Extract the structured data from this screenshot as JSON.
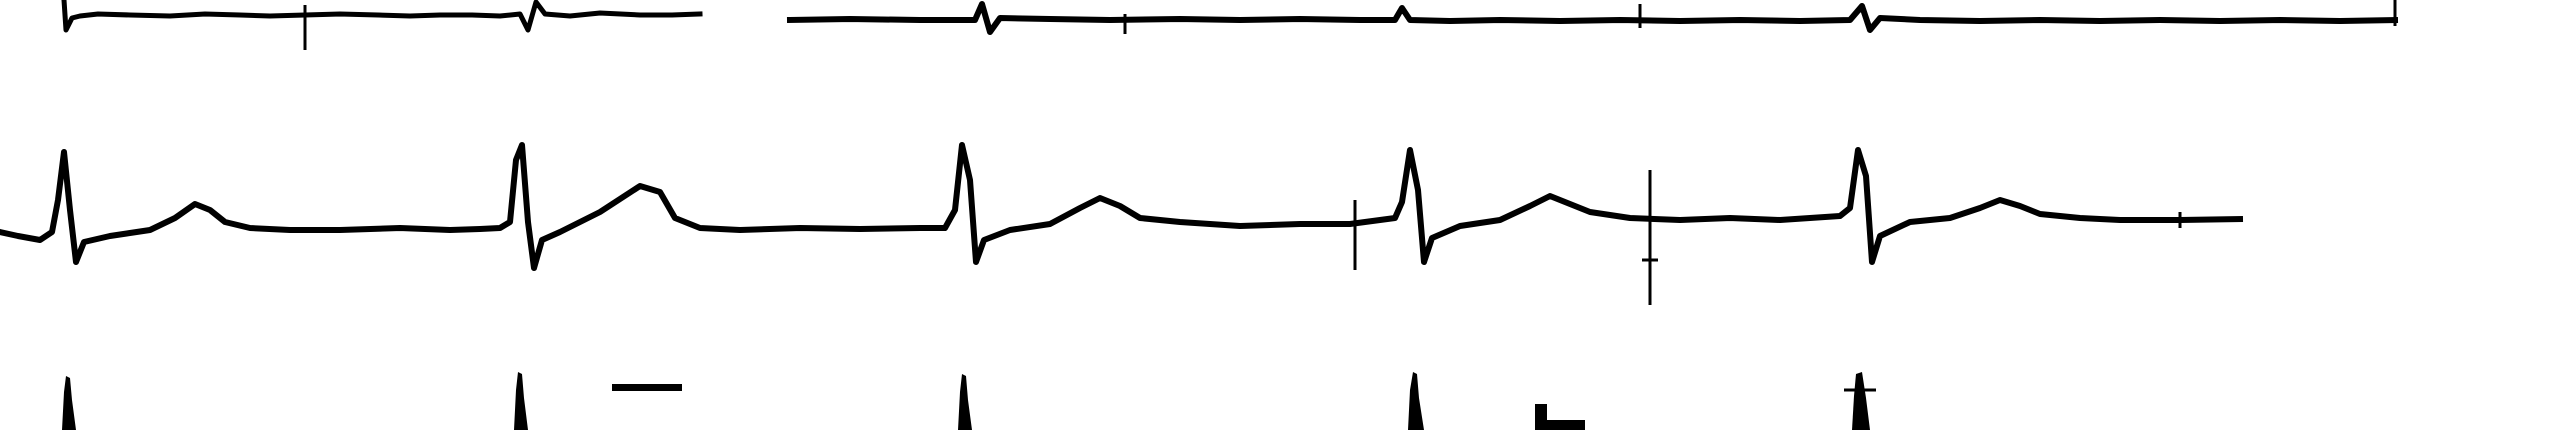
{
  "image": {
    "background_color": "#ffffff",
    "trace_color": "#000000",
    "strips": [
      {
        "name": "ecg-strip-top",
        "beats": 6
      },
      {
        "name": "ecg-strip-middle",
        "beats": 5
      },
      {
        "name": "ecg-strip-bottom",
        "beats": 5
      }
    ]
  }
}
